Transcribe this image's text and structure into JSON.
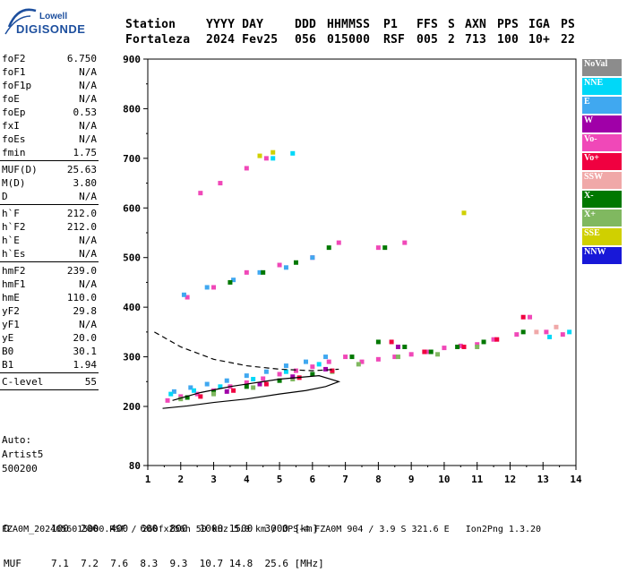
{
  "logo": {
    "top": "Lowell",
    "bottom": "DIGISONDE"
  },
  "header": {
    "columns": [
      {
        "label": "Station",
        "value": "Fortaleza"
      },
      {
        "label": "YYYY DAY",
        "value": "2024 Fev25"
      },
      {
        "label": "DDD",
        "value": "056"
      },
      {
        "label": "HHMMSS",
        "value": "015000"
      },
      {
        "label": "P1",
        "value": "RSF"
      },
      {
        "label": "FFS",
        "value": "005"
      },
      {
        "label": "S",
        "value": "2"
      },
      {
        "label": "AXN",
        "value": "713"
      },
      {
        "label": "PPS",
        "value": "100"
      },
      {
        "label": "IGA",
        "value": "10+"
      },
      {
        "label": "PS",
        "value": "22"
      }
    ]
  },
  "params": {
    "group1": [
      {
        "label": "foF2",
        "value": "6.750"
      },
      {
        "label": "foF1",
        "value": "N/A"
      },
      {
        "label": "foF1p",
        "value": "N/A"
      },
      {
        "label": "foE",
        "value": "N/A"
      },
      {
        "label": "foEp",
        "value": "0.53"
      },
      {
        "label": "fxI",
        "value": "N/A"
      },
      {
        "label": "foEs",
        "value": "N/A"
      },
      {
        "label": "fmin",
        "value": "1.75"
      }
    ],
    "group2": [
      {
        "label": "MUF(D)",
        "value": "25.63"
      },
      {
        "label": "M(D)",
        "value": "3.80"
      },
      {
        "label": "D",
        "value": "N/A"
      }
    ],
    "group3": [
      {
        "label": "h`F",
        "value": "212.0"
      },
      {
        "label": "h`F2",
        "value": "212.0"
      },
      {
        "label": "h`E",
        "value": "N/A"
      },
      {
        "label": "h`Es",
        "value": "N/A"
      }
    ],
    "group4": [
      {
        "label": "hmF2",
        "value": "239.0"
      },
      {
        "label": "hmF1",
        "value": "N/A"
      },
      {
        "label": "hmE",
        "value": "110.0"
      },
      {
        "label": "yF2",
        "value": "29.8"
      },
      {
        "label": "yF1",
        "value": "N/A"
      },
      {
        "label": "yE",
        "value": "20.0"
      },
      {
        "label": "B0",
        "value": "30.1"
      },
      {
        "label": "B1",
        "value": "1.94"
      }
    ],
    "group5": [
      {
        "label": "C-level",
        "value": "55"
      }
    ]
  },
  "auto": {
    "line1": "Auto:",
    "line2": "Artist5",
    "line3": "500200"
  },
  "legend": [
    {
      "label": "NoVal",
      "color": "#8c8c8c"
    },
    {
      "label": "NNE",
      "color": "#00d8f8"
    },
    {
      "label": "E",
      "color": "#40a8f0"
    },
    {
      "label": "W",
      "color": "#a000a8"
    },
    {
      "label": "Vo-",
      "color": "#f048b8"
    },
    {
      "label": "Vo+",
      "color": "#f00040"
    },
    {
      "label": "SSW",
      "color": "#f0a8a8"
    },
    {
      "label": "X-",
      "color": "#007800"
    },
    {
      "label": "X+",
      "color": "#80b860"
    },
    {
      "label": "SSE",
      "color": "#d0d000"
    },
    {
      "label": "NNW",
      "color": "#1818d8"
    }
  ],
  "chart_data": {
    "type": "scatter",
    "xlabel": "",
    "ylabel": "",
    "xlim": [
      1,
      14
    ],
    "ylim": [
      80,
      900
    ],
    "x_ticks": [
      "1",
      "2",
      "3",
      "4",
      "5",
      "6",
      "7",
      "8",
      "9",
      "10",
      "11",
      "12",
      "13",
      "14"
    ],
    "y_ticks": [
      "80",
      "200",
      "300",
      "400",
      "500",
      "600",
      "700",
      "800",
      "900"
    ],
    "series": [
      {
        "name": "Vo-",
        "color": "#f048b8",
        "x": [
          1.6,
          2.0,
          2.5,
          3.0,
          3.5,
          4.0,
          4.5,
          5.0,
          5.5,
          6.0,
          6.5,
          7.0,
          7.5,
          8.0,
          8.5,
          9.0,
          9.5,
          10.0,
          10.5,
          11.0,
          11.5,
          12.2,
          12.6,
          13.1,
          13.6,
          2.2,
          3.0,
          4.0,
          5.0,
          6.0,
          6.8,
          8.0,
          8.8,
          2.6,
          3.2,
          4.0,
          4.6
        ],
        "y": [
          212,
          220,
          225,
          232,
          240,
          248,
          256,
          265,
          272,
          280,
          290,
          300,
          290,
          295,
          300,
          305,
          310,
          318,
          322,
          325,
          335,
          345,
          380,
          350,
          345,
          420,
          440,
          470,
          485,
          500,
          530,
          520,
          530,
          630,
          650,
          680,
          700
        ]
      },
      {
        "name": "E",
        "color": "#40a8f0",
        "x": [
          1.8,
          2.3,
          2.8,
          3.4,
          4.0,
          4.6,
          5.2,
          5.8,
          6.4,
          2.1,
          2.8,
          3.6,
          4.4,
          5.2,
          6.0
        ],
        "y": [
          230,
          238,
          245,
          252,
          262,
          270,
          282,
          290,
          300,
          425,
          440,
          455,
          470,
          480,
          500
        ]
      },
      {
        "name": "X-",
        "color": "#007800",
        "x": [
          2.2,
          3.0,
          4.0,
          5.0,
          6.0,
          7.2,
          8.0,
          8.8,
          9.6,
          10.4,
          11.2,
          12.4,
          3.5,
          4.5,
          5.5,
          6.5,
          8.2
        ],
        "y": [
          218,
          228,
          240,
          252,
          265,
          300,
          330,
          320,
          310,
          320,
          330,
          350,
          450,
          470,
          490,
          520,
          520
        ]
      },
      {
        "name": "X+",
        "color": "#80b860",
        "x": [
          2.0,
          3.0,
          4.2,
          5.4,
          6.6,
          7.4,
          8.6,
          9.8,
          11.0
        ],
        "y": [
          215,
          225,
          238,
          255,
          270,
          285,
          300,
          305,
          320
        ]
      },
      {
        "name": "NNE",
        "color": "#00d8f8",
        "x": [
          1.7,
          2.4,
          3.2,
          4.2,
          5.2,
          6.2,
          13.2,
          13.8,
          4.8,
          5.4
        ],
        "y": [
          225,
          232,
          240,
          255,
          270,
          285,
          340,
          350,
          700,
          710
        ]
      },
      {
        "name": "Vo+",
        "color": "#f00040",
        "x": [
          2.6,
          3.6,
          4.6,
          5.6,
          6.6,
          8.4,
          9.4,
          10.6,
          11.6,
          12.4
        ],
        "y": [
          220,
          232,
          245,
          258,
          272,
          330,
          310,
          320,
          335,
          380
        ]
      },
      {
        "name": "W",
        "color": "#a000a8",
        "x": [
          3.4,
          4.4,
          5.4,
          6.4,
          8.6
        ],
        "y": [
          230,
          245,
          260,
          275,
          320
        ]
      },
      {
        "name": "SSE",
        "color": "#d0d000",
        "x": [
          4.4,
          4.8,
          10.6
        ],
        "y": [
          705,
          712,
          590
        ]
      },
      {
        "name": "SSW",
        "color": "#f0a8a8",
        "x": [
          13.4,
          12.8
        ],
        "y": [
          360,
          350
        ]
      }
    ],
    "profile_solid": {
      "x": [
        1.45,
        2.2,
        3.0,
        4.0,
        5.0,
        5.8,
        6.4,
        6.8,
        6.2,
        5.0,
        3.5,
        2.6,
        1.75
      ],
      "y": [
        196,
        201,
        208,
        215,
        225,
        232,
        240,
        250,
        262,
        255,
        240,
        228,
        212
      ]
    },
    "profile_dashed": {
      "x": [
        1.2,
        2.0,
        3.0,
        4.0,
        5.0,
        6.0,
        6.8
      ],
      "y": [
        350,
        320,
        295,
        282,
        275,
        272,
        275
      ]
    }
  },
  "muf_table": {
    "d_label": "D",
    "d_values": [
      "100",
      "200",
      "400",
      "600",
      "800",
      "1000",
      "1500",
      "3000"
    ],
    "d_unit": "[km]",
    "muf_label": "MUF",
    "muf_values": [
      "7.1",
      "7.2",
      "7.6",
      "8.3",
      "9.3",
      "10.7",
      "14.8",
      "25.6"
    ],
    "muf_unit": "[MHz]"
  },
  "footer": "FZA0M_2024056015000.RSF / 260fx256h 50 kHz 5.0 km / DPS-4 FZA0M 904 / 3.9 S 321.6 E   Ion2Png 1.3.20"
}
